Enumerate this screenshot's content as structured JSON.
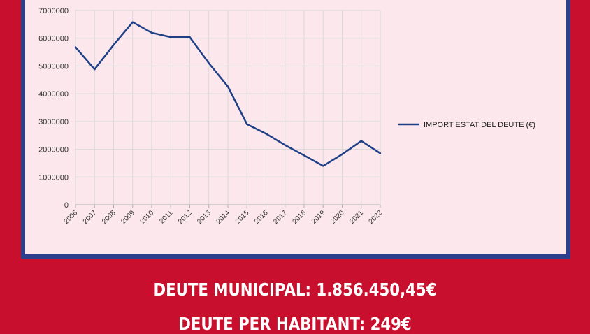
{
  "chart_data": {
    "type": "line",
    "x": [
      "2006",
      "2007",
      "2008",
      "2009",
      "2010",
      "2011",
      "2012",
      "2013",
      "2014",
      "2015",
      "2016",
      "2017",
      "2018",
      "2019",
      "2020",
      "2021",
      "2022"
    ],
    "series": [
      {
        "name": "IMPORT ESTAT DEL DEUTE (€)",
        "values": [
          5680000,
          4880000,
          5760000,
          6580000,
          6200000,
          6040000,
          6040000,
          5100000,
          4260000,
          2900000,
          2560000,
          2150000,
          1780000,
          1400000,
          1820000,
          2300000,
          1856450
        ],
        "color": "#1f3f86"
      }
    ],
    "yticks": [
      "0",
      "1000000",
      "2000000",
      "3000000",
      "4000000",
      "5000000",
      "6000000",
      "7000000"
    ],
    "ylim": [
      0,
      7000000
    ],
    "grid": true,
    "legend_position": "right"
  },
  "captions": {
    "debt_total": "DEUTE MUNICIPAL: 1.856.450,45€",
    "debt_per_capita": "DEUTE PER HABITANT: 249€"
  },
  "colors": {
    "background": "#c8102e",
    "frame": "#2b3f8c",
    "plot_bg": "#fbe7ec",
    "line": "#1f3f86"
  }
}
